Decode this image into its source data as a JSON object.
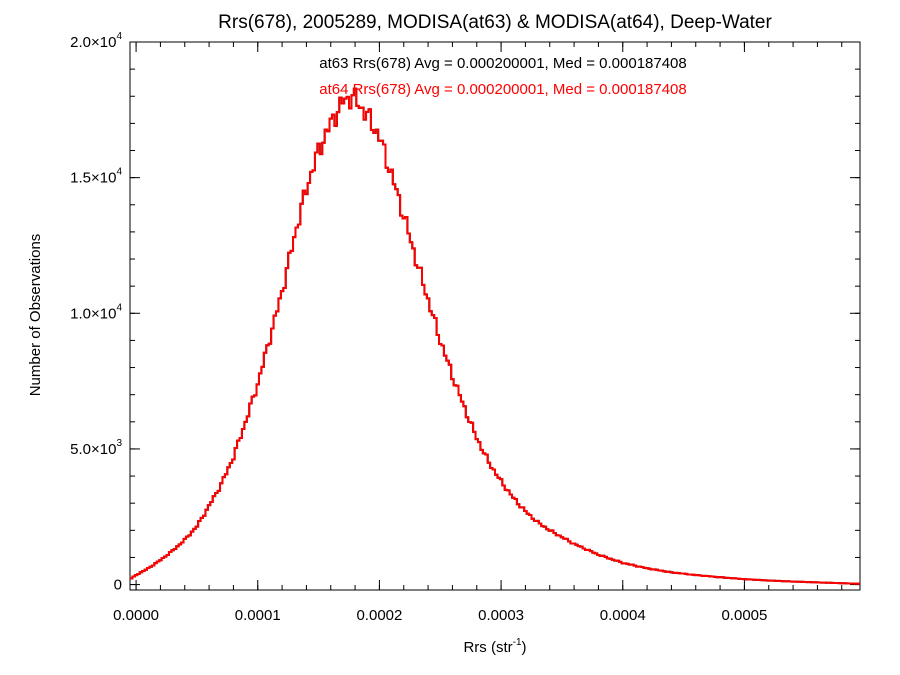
{
  "chart_data": {
    "type": "histogram-step",
    "title": "Rrs(678), 2005289, MODISA(at63) & MODISA(at64), Deep-Water",
    "annotations": [
      {
        "text": "at63 Rrs(678) Avg = 0.000200001, Med = 0.000187408",
        "color": "#000000"
      },
      {
        "text": "at64 Rrs(678) Avg = 0.000200001, Med = 0.000187408",
        "color": "#ff0000"
      }
    ],
    "xlabel": {
      "base": "Rrs (str",
      "sup": "-1",
      "end": ")"
    },
    "ylabel": "Number of Observations",
    "xlim": [
      -5e-06,
      0.000595
    ],
    "ylim": [
      -200,
      20000
    ],
    "x_ticks": [
      {
        "value": 0.0,
        "label": "0.0000"
      },
      {
        "value": 0.0001,
        "label": "0.0001"
      },
      {
        "value": 0.0002,
        "label": "0.0002"
      },
      {
        "value": 0.0003,
        "label": "0.0003"
      },
      {
        "value": 0.0004,
        "label": "0.0004"
      },
      {
        "value": 0.0005,
        "label": "0.0005"
      }
    ],
    "y_ticks": [
      {
        "value": 0,
        "mant": "0",
        "exp": ""
      },
      {
        "value": 5000,
        "mant": "5.0×10",
        "exp": "3"
      },
      {
        "value": 10000,
        "mant": "1.0×10",
        "exp": "4"
      },
      {
        "value": 15000,
        "mant": "1.5×10",
        "exp": "4"
      },
      {
        "value": 20000,
        "mant": "2.0×10",
        "exp": "4"
      }
    ],
    "x_minor_step": 2e-05,
    "y_minor_step": 1000,
    "series": [
      {
        "label": "at63",
        "color": "#000000",
        "width": 2
      },
      {
        "label": "at64",
        "color": "#ff0000",
        "width": 2
      }
    ],
    "curve_points": [
      [
        -5e-06,
        200
      ],
      [
        0.0,
        350
      ],
      [
        1e-05,
        600
      ],
      [
        2e-05,
        900
      ],
      [
        3e-05,
        1250
      ],
      [
        4e-05,
        1650
      ],
      [
        5e-05,
        2150
      ],
      [
        6e-05,
        2900
      ],
      [
        7e-05,
        3700
      ],
      [
        8e-05,
        4700
      ],
      [
        9e-05,
        6000
      ],
      [
        0.0001,
        7400
      ],
      [
        0.00011,
        9100
      ],
      [
        0.00012,
        10800
      ],
      [
        0.00013,
        12800
      ],
      [
        0.00014,
        14600
      ],
      [
        0.00015,
        16000
      ],
      [
        0.00016,
        17000
      ],
      [
        0.00017,
        17800
      ],
      [
        0.000178,
        18000
      ],
      [
        0.00019,
        17300
      ],
      [
        0.0002,
        16500
      ],
      [
        0.00021,
        15100
      ],
      [
        0.00022,
        13600
      ],
      [
        0.00023,
        12000
      ],
      [
        0.00024,
        10500
      ],
      [
        0.00025,
        9000
      ],
      [
        0.00026,
        7700
      ],
      [
        0.00027,
        6500
      ],
      [
        0.00028,
        5400
      ],
      [
        0.00029,
        4500
      ],
      [
        0.0003,
        3800
      ],
      [
        0.00031,
        3200
      ],
      [
        0.00032,
        2700
      ],
      [
        0.00033,
        2300
      ],
      [
        0.00034,
        2000
      ],
      [
        0.00035,
        1750
      ],
      [
        0.00036,
        1500
      ],
      [
        0.00037,
        1300
      ],
      [
        0.00038,
        1100
      ],
      [
        0.00039,
        950
      ],
      [
        0.0004,
        800
      ],
      [
        0.00042,
        600
      ],
      [
        0.00044,
        450
      ],
      [
        0.00046,
        350
      ],
      [
        0.00048,
        270
      ],
      [
        0.0005,
        200
      ],
      [
        0.00052,
        150
      ],
      [
        0.00054,
        110
      ],
      [
        0.00056,
        80
      ],
      [
        0.00058,
        50
      ],
      [
        0.000595,
        30
      ]
    ],
    "bin_width": 2e-06,
    "grid": false,
    "legend": "annotation text at top-center"
  }
}
